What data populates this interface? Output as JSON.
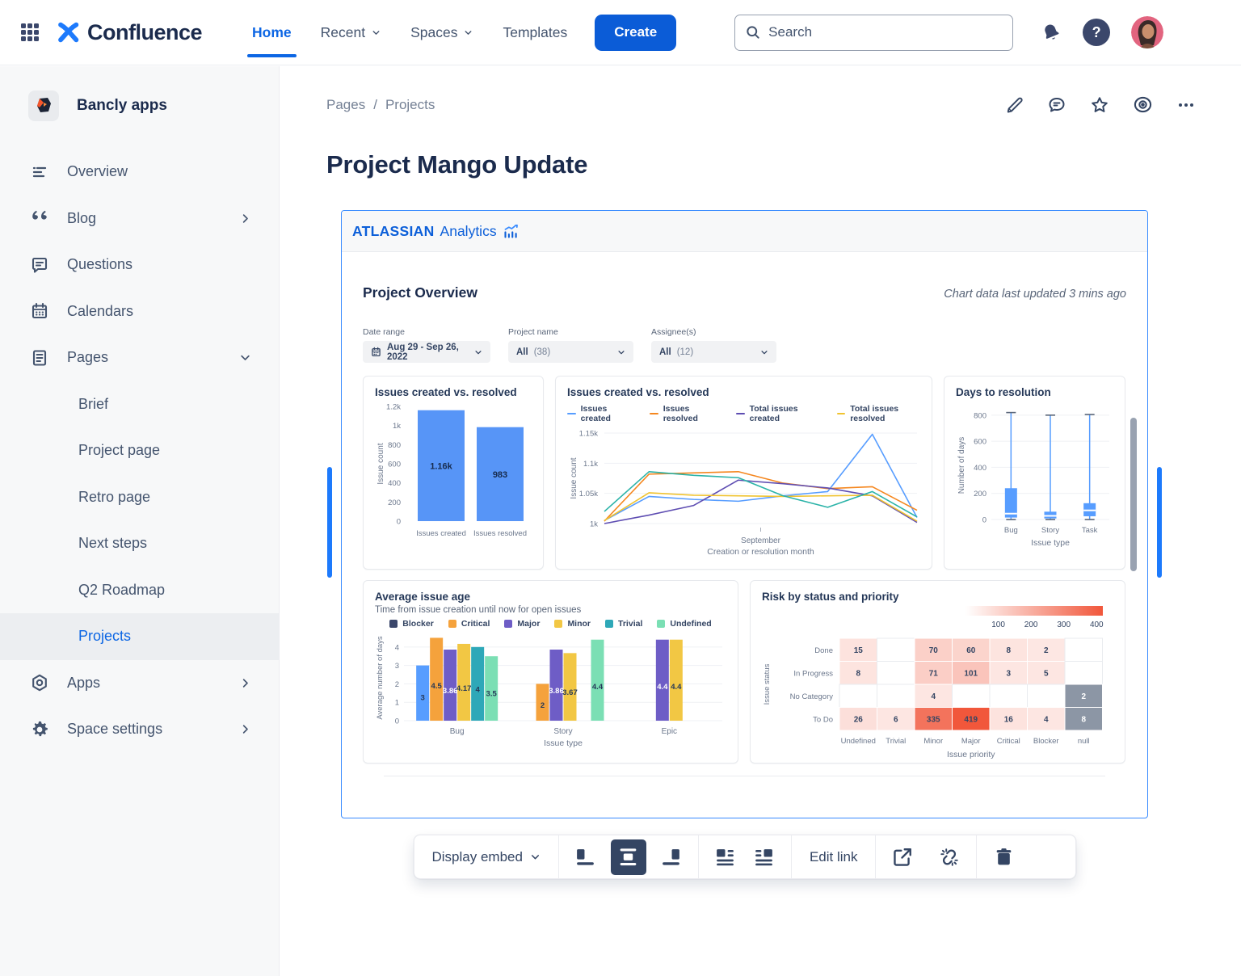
{
  "topnav": {
    "brand": "Confluence",
    "items": [
      {
        "label": "Home"
      },
      {
        "label": "Recent"
      },
      {
        "label": "Spaces"
      },
      {
        "label": "Templates"
      }
    ],
    "create_label": "Create",
    "search_placeholder": "Search"
  },
  "sidebar": {
    "space_name": "Bancly apps",
    "items": [
      {
        "label": "Overview"
      },
      {
        "label": "Blog"
      },
      {
        "label": "Questions"
      },
      {
        "label": "Calendars"
      },
      {
        "label": "Pages"
      }
    ],
    "page_items": [
      {
        "label": "Brief"
      },
      {
        "label": "Project page"
      },
      {
        "label": "Retro page"
      },
      {
        "label": "Next steps"
      },
      {
        "label": "Q2 Roadmap"
      },
      {
        "label": "Projects"
      }
    ],
    "bottom_items": [
      {
        "label": "Apps"
      },
      {
        "label": "Space settings"
      }
    ]
  },
  "page": {
    "breadcrumb": [
      "Pages",
      "Projects"
    ],
    "title": "Project Mango Update"
  },
  "embed": {
    "brand_primary": "ATLASSIAN",
    "brand_secondary": "Analytics",
    "dashboard_title": "Project Overview",
    "updated_text": "Chart data last updated 3 mins ago",
    "filters": [
      {
        "label": "Date range",
        "value": "Aug 29 - Sep 26, 2022",
        "count": ""
      },
      {
        "label": "Project name",
        "value": "All",
        "count": "(38)"
      },
      {
        "label": "Assignee(s)",
        "value": "All",
        "count": "(12)"
      }
    ]
  },
  "toolbar": {
    "display_label": "Display embed",
    "edit_link_label": "Edit link"
  },
  "chart_data": [
    {
      "type": "bar",
      "title": "Issues created vs. resolved",
      "ylabel": "Issue count",
      "xlabel": "",
      "categories": [
        "Issues created",
        "Issues resolved"
      ],
      "values": [
        1160,
        983
      ],
      "bar_labels": [
        "1.16k",
        "983"
      ],
      "ylim": [
        0,
        1200
      ],
      "ytick_values": [
        0,
        200,
        400,
        600,
        800,
        1000,
        1200
      ],
      "ytick_labels": [
        "0",
        "200",
        "400",
        "600",
        "800",
        "1k",
        "1.2k"
      ],
      "bar_color": "#5795F7"
    },
    {
      "type": "line",
      "title": "Issues created vs. resolved",
      "ylabel": "Issue count",
      "xlabel": "Creation or resolution month",
      "xtick_label": "September",
      "ylim": [
        1000,
        1150
      ],
      "ytick_values": [
        1000,
        1050,
        1100,
        1150
      ],
      "ytick_labels": [
        "1k",
        "1.05k",
        "1.1k",
        "1.15k"
      ],
      "grid": true,
      "legend_position": "top",
      "series": [
        {
          "name": "Issues created",
          "color": "#579DFF",
          "in_legend": true,
          "values": [
            1005,
            1045,
            1040,
            1037,
            1046,
            1053,
            1148,
            1010
          ]
        },
        {
          "name": "Issues resolved",
          "color": "#F5871F",
          "in_legend": true,
          "values": [
            1004,
            1082,
            1084,
            1086,
            1067,
            1058,
            1061,
            1022
          ]
        },
        {
          "name": "Total issues created",
          "color": "#5E4DB2",
          "in_legend": true,
          "values": [
            1000,
            1014,
            1030,
            1072,
            1066,
            1059,
            1046,
            1002
          ]
        },
        {
          "name": "Total issues resolved",
          "color": "#F0C330",
          "in_legend": true,
          "values": [
            1005,
            1051,
            1047,
            1046,
            1045,
            1046,
            1047,
            1004
          ]
        },
        {
          "name": "",
          "color": "#2BB3A8",
          "in_legend": false,
          "values": [
            1020,
            1086,
            1080,
            1076,
            1046,
            1027,
            1053,
            1011
          ]
        }
      ]
    },
    {
      "type": "boxplot",
      "title": "Days to resolution",
      "ylabel": "Number of days",
      "xlabel": "Issue type",
      "categories": [
        "Bug",
        "Story",
        "Task"
      ],
      "ylim": [
        0,
        830
      ],
      "ytick_values": [
        0,
        200,
        400,
        600,
        800
      ],
      "boxes": [
        {
          "low": 0,
          "q1": 15,
          "median": 45,
          "q3": 240,
          "high": 820
        },
        {
          "low": 0,
          "q1": 8,
          "median": 28,
          "q3": 60,
          "high": 800
        },
        {
          "low": 0,
          "q1": 25,
          "median": 70,
          "q3": 125,
          "high": 805
        }
      ],
      "box_color": "#579DFF"
    },
    {
      "type": "grouped_bar",
      "title": "Average issue age",
      "subtitle": "Time from issue creation until now for open issues",
      "ylabel": "Average number of days",
      "xlabel": "Issue type",
      "categories": [
        "Bug",
        "Story",
        "Epic"
      ],
      "ylim": [
        0,
        4.65
      ],
      "ytick_values": [
        0,
        1,
        2,
        3,
        4
      ],
      "series": [
        {
          "name": "Blocker",
          "legend_color": "#3B476B",
          "bar_color": "#579DFF",
          "label_color": "#253858",
          "values": [
            3,
            null,
            null
          ],
          "labels": [
            "3",
            null,
            null
          ]
        },
        {
          "name": "Critical",
          "legend_color": "#F5A23C",
          "bar_color": "#F5A23C",
          "label_color": "#253858",
          "values": [
            4.5,
            2,
            null
          ],
          "labels": [
            "4.5",
            "2",
            null
          ]
        },
        {
          "name": "Major",
          "legend_color": "#6E5DC6",
          "bar_color": "#6E5DC6",
          "label_color": "#FFFFFF",
          "values": [
            3.86,
            3.86,
            4.4
          ],
          "labels": [
            "3.86",
            "3.86",
            "4.4"
          ]
        },
        {
          "name": "Minor",
          "legend_color": "#F2C744",
          "bar_color": "#F2C744",
          "label_color": "#253858",
          "values": [
            4.17,
            3.67,
            4.4
          ],
          "labels": [
            "4.17",
            "3.67",
            "4.4"
          ]
        },
        {
          "name": "Trivial",
          "legend_color": "#2EA8B8",
          "bar_color": "#2EA8B8",
          "label_color": "#253858",
          "values": [
            4,
            null,
            null
          ],
          "labels": [
            "4",
            null,
            null
          ]
        },
        {
          "name": "Undefined",
          "legend_color": "#7BDFB4",
          "bar_color": "#7BDFB4",
          "label_color": "#253858",
          "values": [
            3.5,
            4.4,
            null
          ],
          "labels": [
            "3.5",
            "4.4",
            null
          ]
        }
      ]
    },
    {
      "type": "heatmap",
      "title": "Risk by status and priority",
      "ylabel": "Issue status",
      "xlabel": "Issue priority",
      "rows": [
        "Done",
        "In Progress",
        "No Category",
        "To Do"
      ],
      "cols": [
        "Undefined",
        "Trivial",
        "Minor",
        "Major",
        "Critical",
        "Blocker",
        "null"
      ],
      "values": [
        [
          15,
          null,
          70,
          60,
          8,
          2,
          null
        ],
        [
          8,
          null,
          71,
          101,
          3,
          5,
          null
        ],
        [
          null,
          null,
          4,
          null,
          null,
          null,
          2
        ],
        [
          26,
          6,
          335,
          419,
          16,
          4,
          8
        ]
      ],
      "gray_cells": [
        [
          2,
          6
        ],
        [
          3,
          6
        ]
      ],
      "scale_max": 419,
      "scale_ticks": [
        100,
        200,
        300,
        400
      ],
      "heat_color": "#F1573B",
      "gray_color": "#8C96A5"
    }
  ]
}
